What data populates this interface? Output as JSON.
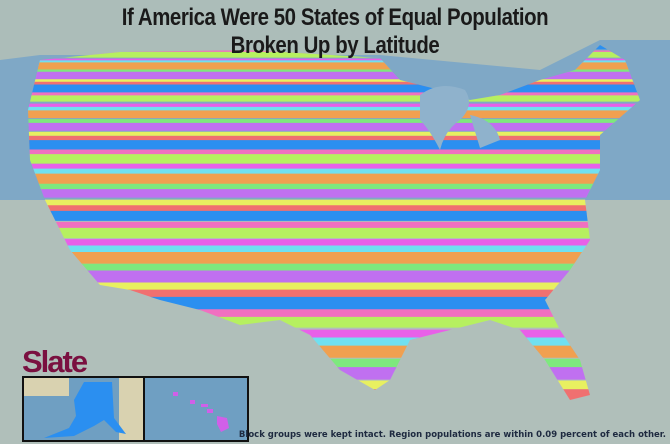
{
  "title": {
    "line1": "If America Were 50 States of Equal Population",
    "line2": "Broken Up by Latitude"
  },
  "logo": "Slate",
  "insets": [
    "Alaska",
    "Hawaii"
  ],
  "footnote": "Block groups were kept intact. Region populations are within 0.09 percent of each other.",
  "regions_count": 50,
  "colors": {
    "ocean": "#7fa8c6",
    "land": "#d9d2b0",
    "stripes": [
      "#2b8ff0",
      "#f070c0",
      "#b6f060",
      "#e860e8",
      "#70e0f0",
      "#f0a050",
      "#7ee87e",
      "#c070f0",
      "#e8f060",
      "#f07070"
    ],
    "alaska": "#2b8ff0",
    "hawaii": "#d060e8",
    "logo": "#7a1040"
  }
}
